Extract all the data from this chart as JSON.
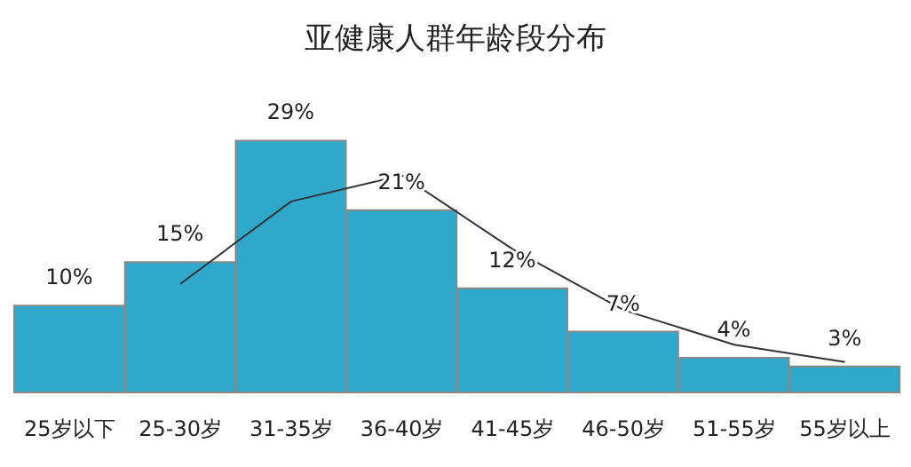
{
  "chart_data": {
    "type": "bar",
    "title": "亚健康人群年龄段分布",
    "categories": [
      "25岁以下",
      "25-30岁",
      "31-35岁",
      "36-40岁",
      "41-45岁",
      "46-50岁",
      "51-55岁",
      "55岁以上"
    ],
    "series": [
      {
        "color": "#2fa8cc",
        "values": [
          10,
          15,
          29,
          21,
          12,
          7,
          4,
          3
        ],
        "value_labels": [
          "10%",
          "15%",
          "29%",
          "21%",
          "12%",
          "7%",
          "4%",
          "3%"
        ]
      },
      {
        "type": "line",
        "color": "#333333",
        "values": [
          null,
          12.5,
          22,
          25,
          16.5,
          9.5,
          5.5,
          3.5
        ],
        "marker": "none",
        "line_style": "solid"
      }
    ],
    "grid": false,
    "legend": false
  }
}
